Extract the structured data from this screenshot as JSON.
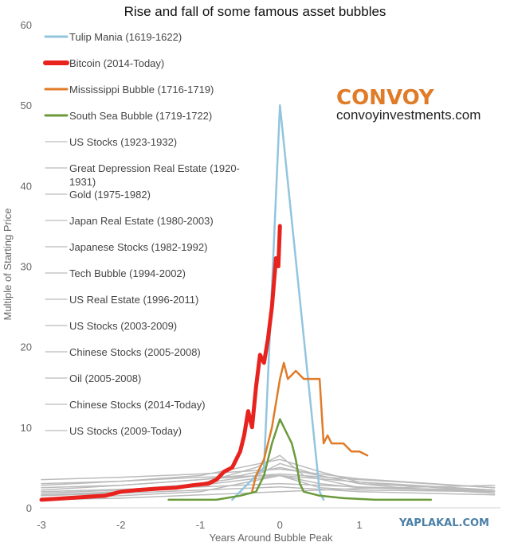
{
  "chart_data": {
    "type": "line",
    "title": "Rise and fall of some famous asset bubbles",
    "xlabel": "Years Around Bubble Peak",
    "ylabel": "Multiple of Starting Price",
    "xlim": [
      -3,
      1.3
    ],
    "ylim": [
      0,
      60
    ],
    "xticks": [
      -3,
      -2,
      -1,
      0,
      1
    ],
    "yticks": [
      0,
      10,
      20,
      30,
      40,
      50,
      60
    ],
    "grid": false,
    "legend_position": "top-left",
    "series": [
      {
        "name": "Tulip Mania (1619-1622)",
        "color": "#92c5de",
        "width": 2.5,
        "x": [
          -0.6,
          -0.2,
          0,
          0.5,
          0.55
        ],
        "y": [
          1,
          5,
          50,
          2,
          1
        ]
      },
      {
        "name": "Bitcoin (2014-Today)",
        "color": "#e8231e",
        "width": 5,
        "x": [
          -3,
          -2.5,
          -2.2,
          -2.0,
          -1.8,
          -1.5,
          -1.3,
          -1.1,
          -0.9,
          -0.8,
          -0.7,
          -0.6,
          -0.5,
          -0.45,
          -0.4,
          -0.35,
          -0.3,
          -0.25,
          -0.2,
          -0.15,
          -0.1,
          -0.05,
          -0.02,
          0
        ],
        "y": [
          1,
          1.3,
          1.5,
          2,
          2.2,
          2.4,
          2.5,
          2.8,
          3,
          3.5,
          4.5,
          5,
          7,
          9,
          12,
          10,
          15,
          19,
          18,
          21,
          25,
          31,
          30,
          35
        ]
      },
      {
        "name": "Mississippi Bubble (1716-1719)",
        "color": "#e07b28",
        "width": 2.5,
        "x": [
          -0.35,
          -0.3,
          -0.2,
          -0.1,
          0,
          0.05,
          0.1,
          0.2,
          0.3,
          0.4,
          0.5,
          0.55,
          0.6,
          0.65,
          0.7,
          0.8,
          0.9,
          1.0,
          1.1
        ],
        "y": [
          2,
          4,
          6,
          10,
          16,
          18,
          16,
          17,
          16,
          16,
          16,
          8,
          9,
          8,
          8,
          8,
          7,
          7,
          6.5
        ]
      },
      {
        "name": "South Sea Bubble (1719-1722)",
        "color": "#6a9a3a",
        "width": 2.5,
        "x": [
          -1.4,
          -0.8,
          -0.5,
          -0.3,
          -0.2,
          -0.1,
          0,
          0.05,
          0.1,
          0.15,
          0.2,
          0.25,
          0.3,
          0.5,
          0.8,
          1.2,
          1.9
        ],
        "y": [
          1,
          1,
          1.5,
          2,
          4,
          8,
          11,
          10,
          9,
          8,
          6,
          3,
          2,
          1.5,
          1.2,
          1,
          1
        ]
      },
      {
        "name": "US Stocks (1923-1932)",
        "color": "#bbbbbb",
        "width": 1.5,
        "x": [
          -3,
          -2,
          -1,
          -0.5,
          0,
          0.5,
          1,
          1.5,
          2.7
        ],
        "y": [
          2.5,
          2.8,
          3.5,
          4,
          5,
          4,
          3,
          2.5,
          1.8
        ]
      },
      {
        "name": "Great Depression Real Estate (1920-1931)",
        "color": "#bbbbbb",
        "width": 1.5,
        "x": [
          -3,
          -2,
          -1,
          0,
          1,
          2.7
        ],
        "y": [
          3,
          3.3,
          3.8,
          4,
          3.2,
          2.2
        ]
      },
      {
        "name": "Gold (1975-1982)",
        "color": "#bbbbbb",
        "width": 1.5,
        "x": [
          -3,
          -2,
          -1,
          -0.3,
          0,
          0.5,
          1,
          2.7
        ],
        "y": [
          1.8,
          2.2,
          3,
          4,
          5.5,
          4,
          3,
          2.2
        ]
      },
      {
        "name": "Japan Real Estate (1980-2003)",
        "color": "#bbbbbb",
        "width": 1.5,
        "x": [
          -3,
          -2,
          -1,
          0,
          1,
          2.7
        ],
        "y": [
          2.2,
          2.8,
          3.5,
          4.2,
          3.5,
          2.5
        ]
      },
      {
        "name": "Japanese Stocks (1982-1992)",
        "color": "#bbbbbb",
        "width": 1.5,
        "x": [
          -3,
          -2,
          -1,
          0,
          1,
          2.7
        ],
        "y": [
          3.5,
          3.8,
          4.2,
          4.8,
          3.6,
          2.5
        ]
      },
      {
        "name": "Tech Bubble (1994-2002)",
        "color": "#bbbbbb",
        "width": 1.5,
        "x": [
          -3,
          -2,
          -1,
          0,
          0.5,
          1,
          2.7
        ],
        "y": [
          2.8,
          3.3,
          4,
          6,
          4.5,
          3.2,
          2
        ]
      },
      {
        "name": "US Real Estate (1996-2011)",
        "color": "#bbbbbb",
        "width": 1.5,
        "x": [
          -3,
          -2,
          -1,
          0,
          1,
          2.7
        ],
        "y": [
          2,
          2.3,
          2.6,
          3,
          2.6,
          2
        ]
      },
      {
        "name": "US Stocks (2003-2009)",
        "color": "#bbbbbb",
        "width": 1.5,
        "x": [
          -3,
          -2,
          -1,
          0,
          1,
          2.7
        ],
        "y": [
          1.5,
          1.8,
          2.2,
          2.6,
          2,
          1.6
        ]
      },
      {
        "name": "Chinese Stocks (2005-2008)",
        "color": "#bbbbbb",
        "width": 1.5,
        "x": [
          -3,
          -2,
          -1,
          -0.3,
          0,
          0.3,
          1,
          2.7
        ],
        "y": [
          1.5,
          2,
          3,
          5,
          6.5,
          4,
          2.5,
          2
        ]
      },
      {
        "name": "Oil (2005-2008)",
        "color": "#bbbbbb",
        "width": 1.5,
        "x": [
          -3,
          -2,
          -1,
          0,
          0.5,
          1,
          2.7
        ],
        "y": [
          1.6,
          2,
          2.8,
          4,
          2.5,
          2.2,
          2
        ]
      },
      {
        "name": "Chinese Stocks (2014-Today)",
        "color": "#bbbbbb",
        "width": 1.5,
        "x": [
          -3,
          -2,
          -1,
          -0.5,
          0,
          0.5,
          1,
          2.7
        ],
        "y": [
          1.2,
          1.5,
          2,
          3,
          4,
          3,
          2.5,
          2.2
        ]
      },
      {
        "name": "US Stocks (2009-Today)",
        "color": "#bbbbbb",
        "width": 1.5,
        "x": [
          -3,
          -2,
          -1,
          0,
          1,
          2.7
        ],
        "y": [
          1,
          1.2,
          1.6,
          2,
          2.4,
          2.8
        ]
      }
    ]
  },
  "branding": {
    "logo": "CONVOY",
    "logo_color": "#e07b28",
    "url": "convoyinvestments.com",
    "watermark": "YAPLAKAL.COM",
    "watermark_color": "#4a7fa6"
  }
}
